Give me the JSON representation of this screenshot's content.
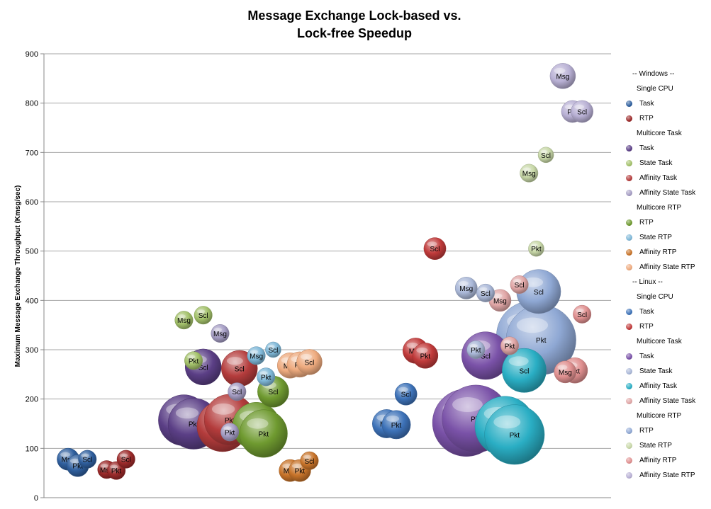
{
  "chart_data": {
    "type": "bubble",
    "title": [
      "Message Exchange Lock-based vs.",
      "Lock-free Speedup"
    ],
    "ylabel": "Maximum Message Exchange Throughput (Kmsg/sec)",
    "ylim": [
      0,
      900
    ],
    "yticks": [
      0,
      100,
      200,
      300,
      400,
      500,
      600,
      700,
      800,
      900
    ],
    "grid": true,
    "legend_position": "right",
    "legend": [
      {
        "kind": "header",
        "label": "-- Windows --"
      },
      {
        "kind": "group",
        "label": "Single CPU"
      },
      {
        "kind": "item",
        "label": "Task",
        "color": "#2f5f9e"
      },
      {
        "kind": "item",
        "label": "RTP",
        "color": "#9c2a2a"
      },
      {
        "kind": "group",
        "label": "Multicore Task"
      },
      {
        "kind": "item",
        "label": "Task",
        "color": "#5b3f86"
      },
      {
        "kind": "item",
        "label": "State Task",
        "color": "#a3c16a"
      },
      {
        "kind": "item",
        "label": "Affinity Task",
        "color": "#b43c3c"
      },
      {
        "kind": "item",
        "label": "Affinity State Task",
        "color": "#a59dc4"
      },
      {
        "kind": "group",
        "label": "Multicore RTP"
      },
      {
        "kind": "item",
        "label": "RTP",
        "color": "#6f9a30"
      },
      {
        "kind": "item",
        "label": "State RTP",
        "color": "#7fb8d8"
      },
      {
        "kind": "item",
        "label": "Affinity RTP",
        "color": "#c8742a"
      },
      {
        "kind": "item",
        "label": "Affinity State RTP",
        "color": "#eeaa7e"
      },
      {
        "kind": "header",
        "label": "-- Linux --"
      },
      {
        "kind": "group",
        "label": "Single CPU"
      },
      {
        "kind": "item",
        "label": "Task",
        "color": "#3d72b8"
      },
      {
        "kind": "item",
        "label": "RTP",
        "color": "#c03a3a"
      },
      {
        "kind": "group",
        "label": "Multicore Task"
      },
      {
        "kind": "item",
        "label": "Task",
        "color": "#7a52a8"
      },
      {
        "kind": "item",
        "label": "State Task",
        "color": "#aab8d8"
      },
      {
        "kind": "item",
        "label": "Affinity Task",
        "color": "#2aaec4"
      },
      {
        "kind": "item",
        "label": "Affinity State Task",
        "color": "#e0a6a6"
      },
      {
        "kind": "group",
        "label": "Multicore RTP"
      },
      {
        "kind": "item",
        "label": "RTP",
        "color": "#8fa8d4"
      },
      {
        "kind": "item",
        "label": "State RTP",
        "color": "#c8d8a8"
      },
      {
        "kind": "item",
        "label": "Affinity RTP",
        "color": "#e09090"
      },
      {
        "kind": "item",
        "label": "Affinity State RTP",
        "color": "#b8b0d4"
      }
    ],
    "series": [
      {
        "os": "Windows",
        "group": "Single CPU",
        "name": "Task",
        "color": "#2f5f9e",
        "points": [
          {
            "label": "Msg",
            "x": 1.0,
            "y": 78,
            "size": 3
          },
          {
            "label": "Pkt",
            "x": 1.4,
            "y": 65,
            "size": 3
          },
          {
            "label": "Scl",
            "x": 1.8,
            "y": 78,
            "size": 2
          }
        ]
      },
      {
        "os": "Windows",
        "group": "Single CPU",
        "name": "RTP",
        "color": "#9c2a2a",
        "points": [
          {
            "label": "Msg",
            "x": 2.6,
            "y": 57,
            "size": 2
          },
          {
            "label": "Pkt",
            "x": 3.0,
            "y": 55,
            "size": 2
          },
          {
            "label": "Scl",
            "x": 3.4,
            "y": 78,
            "size": 2
          }
        ]
      },
      {
        "os": "Windows",
        "group": "Multicore Task",
        "name": "Task",
        "color": "#5b3f86",
        "points": [
          {
            "label": "Msg",
            "x": 5.8,
            "y": 157,
            "size": 16
          },
          {
            "label": "Pkt",
            "x": 6.2,
            "y": 150,
            "size": 16
          },
          {
            "label": "Scl",
            "x": 6.6,
            "y": 265,
            "size": 8
          }
        ]
      },
      {
        "os": "Windows",
        "group": "Multicore Task",
        "name": "State Task",
        "color": "#a3c16a",
        "points": [
          {
            "label": "Msg",
            "x": 5.8,
            "y": 360,
            "size": 2
          },
          {
            "label": "Pkt",
            "x": 6.2,
            "y": 278,
            "size": 2
          },
          {
            "label": "Scl",
            "x": 6.6,
            "y": 370,
            "size": 2
          }
        ]
      },
      {
        "os": "Windows",
        "group": "Multicore Task",
        "name": "Affinity Task",
        "color": "#b43c3c",
        "points": [
          {
            "label": "Msg",
            "x": 7.4,
            "y": 145,
            "size": 16
          },
          {
            "label": "Pkt",
            "x": 7.7,
            "y": 158,
            "size": 16
          },
          {
            "label": "Scl",
            "x": 8.1,
            "y": 262,
            "size": 8
          }
        ]
      },
      {
        "os": "Windows",
        "group": "Multicore Task",
        "name": "Affinity State Task",
        "color": "#a59dc4",
        "points": [
          {
            "label": "Msg",
            "x": 7.3,
            "y": 333,
            "size": 2
          },
          {
            "label": "Pkt",
            "x": 7.7,
            "y": 133,
            "size": 2
          },
          {
            "label": "Scl",
            "x": 8.0,
            "y": 215,
            "size": 2
          }
        ]
      },
      {
        "os": "Windows",
        "group": "Multicore RTP",
        "name": "RTP",
        "color": "#6f9a30",
        "points": [
          {
            "label": "Msg",
            "x": 8.8,
            "y": 145,
            "size": 14
          },
          {
            "label": "Pkt",
            "x": 9.1,
            "y": 130,
            "size": 14
          },
          {
            "label": "Scl",
            "x": 9.5,
            "y": 215,
            "size": 6
          }
        ]
      },
      {
        "os": "Windows",
        "group": "Multicore RTP",
        "name": "State RTP",
        "color": "#7fb8d8",
        "points": [
          {
            "label": "Msg",
            "x": 8.8,
            "y": 288,
            "size": 2
          },
          {
            "label": "Pkt",
            "x": 9.2,
            "y": 245,
            "size": 2
          },
          {
            "label": "Scl",
            "x": 9.5,
            "y": 300,
            "size": 1.5
          }
        ]
      },
      {
        "os": "Windows",
        "group": "Multicore RTP",
        "name": "Affinity RTP",
        "color": "#c8742a",
        "points": [
          {
            "label": "Msg",
            "x": 10.2,
            "y": 55,
            "size": 3
          },
          {
            "label": "Pkt",
            "x": 10.6,
            "y": 55,
            "size": 3
          },
          {
            "label": "Scl",
            "x": 11.0,
            "y": 75,
            "size": 2
          }
        ]
      },
      {
        "os": "Windows",
        "group": "Multicore RTP",
        "name": "Affinity State RTP",
        "color": "#eeaa7e",
        "points": [
          {
            "label": "Msg",
            "x": 10.2,
            "y": 268,
            "size": 4
          },
          {
            "label": "Pkt",
            "x": 10.6,
            "y": 270,
            "size": 4
          },
          {
            "label": "Scl",
            "x": 11.0,
            "y": 275,
            "size": 4
          }
        ]
      },
      {
        "os": "Linux",
        "group": "Single CPU",
        "name": "Task",
        "color": "#3d72b8",
        "points": [
          {
            "label": "Msg",
            "x": 14.2,
            "y": 150,
            "size": 5
          },
          {
            "label": "Pkt",
            "x": 14.6,
            "y": 148,
            "size": 5
          },
          {
            "label": "Scl",
            "x": 15.0,
            "y": 210,
            "size": 3
          }
        ]
      },
      {
        "os": "Linux",
        "group": "Single CPU",
        "name": "RTP",
        "color": "#c03a3a",
        "points": [
          {
            "label": "Msg",
            "x": 15.4,
            "y": 298,
            "size": 4
          },
          {
            "label": "Pkt",
            "x": 15.8,
            "y": 288,
            "size": 4
          },
          {
            "label": "Scl",
            "x": 16.2,
            "y": 505,
            "size": 3
          }
        ]
      },
      {
        "os": "Linux",
        "group": "Multicore Task",
        "name": "Task",
        "color": "#7a52a8",
        "points": [
          {
            "label": "Msg",
            "x": 17.5,
            "y": 152,
            "size": 28
          },
          {
            "label": "Pkt",
            "x": 17.9,
            "y": 160,
            "size": 28
          },
          {
            "label": "Scl",
            "x": 18.3,
            "y": 288,
            "size": 14
          }
        ]
      },
      {
        "os": "Linux",
        "group": "Multicore Task",
        "name": "State Task",
        "color": "#aab8d8",
        "points": [
          {
            "label": "Msg",
            "x": 17.5,
            "y": 425,
            "size": 3
          },
          {
            "label": "Pkt",
            "x": 17.9,
            "y": 300,
            "size": 2
          },
          {
            "label": "Scl",
            "x": 18.3,
            "y": 415,
            "size": 2
          }
        ]
      },
      {
        "os": "Linux",
        "group": "Multicore Task",
        "name": "Affinity Task",
        "color": "#2aaec4",
        "points": [
          {
            "label": "Msg",
            "x": 19.1,
            "y": 145,
            "size": 22
          },
          {
            "label": "Pkt",
            "x": 19.5,
            "y": 128,
            "size": 22
          },
          {
            "label": "Scl",
            "x": 19.9,
            "y": 258,
            "size": 12
          }
        ]
      },
      {
        "os": "Linux",
        "group": "Multicore Task",
        "name": "Affinity State Task",
        "color": "#e0a6a6",
        "points": [
          {
            "label": "Msg",
            "x": 18.9,
            "y": 400,
            "size": 3
          },
          {
            "label": "Pkt",
            "x": 19.3,
            "y": 308,
            "size": 2
          },
          {
            "label": "Scl",
            "x": 19.7,
            "y": 432,
            "size": 2
          }
        ]
      },
      {
        "os": "Linux",
        "group": "Multicore RTP",
        "name": "RTP",
        "color": "#8fa8d4",
        "points": [
          {
            "label": "Msg",
            "x": 20.2,
            "y": 328,
            "size": 30
          },
          {
            "label": "Pkt",
            "x": 20.6,
            "y": 320,
            "size": 30
          },
          {
            "label": "Scl",
            "x": 20.5,
            "y": 418,
            "size": 12
          }
        ]
      },
      {
        "os": "Linux",
        "group": "Multicore RTP",
        "name": "State RTP",
        "color": "#c8d8a8",
        "points": [
          {
            "label": "Msg",
            "x": 20.1,
            "y": 658,
            "size": 2
          },
          {
            "label": "Pkt",
            "x": 20.4,
            "y": 505,
            "size": 1.5
          },
          {
            "label": "Scl",
            "x": 20.8,
            "y": 695,
            "size": 1.5
          }
        ]
      },
      {
        "os": "Linux",
        "group": "Multicore RTP",
        "name": "Affinity RTP",
        "color": "#e09090",
        "points": [
          {
            "label": "Msg",
            "x": 21.6,
            "y": 255,
            "size": 3
          },
          {
            "label": "Pkt",
            "x": 22.0,
            "y": 258,
            "size": 4
          },
          {
            "label": "Scl",
            "x": 22.3,
            "y": 372,
            "size": 2
          }
        ]
      },
      {
        "os": "Linux",
        "group": "Multicore RTP",
        "name": "Affinity State RTP",
        "color": "#b8b0d4",
        "points": [
          {
            "label": "Msg",
            "x": 21.5,
            "y": 855,
            "size": 4
          },
          {
            "label": "Pkt",
            "x": 21.9,
            "y": 783,
            "size": 3
          },
          {
            "label": "Scl",
            "x": 22.3,
            "y": 783,
            "size": 3
          }
        ]
      }
    ]
  }
}
